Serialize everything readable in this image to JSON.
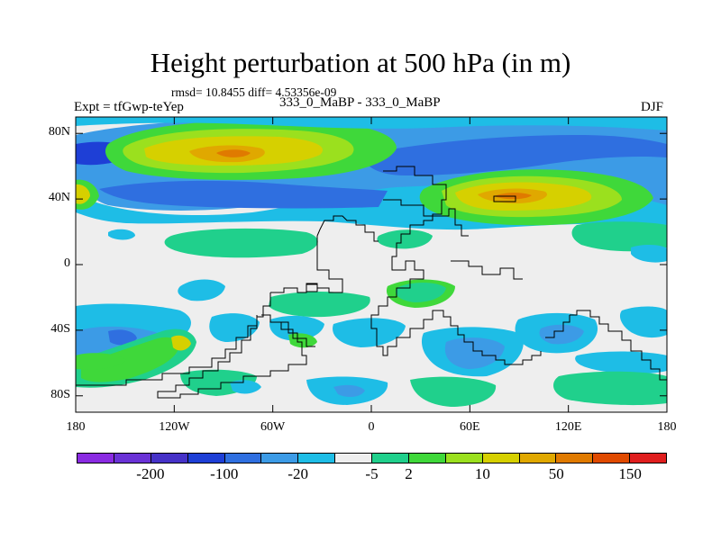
{
  "title": "Height perturbation at 500 hPa (in m)",
  "stats": "rmsd= 10.8455 diff= 4.53356e-09",
  "expt": "Expt = tfGwp-teYep",
  "case_id": "333_0_MaBP - 333_0_MaBP",
  "season": "DJF",
  "y_axis": {
    "labels": [
      "80N",
      "40N",
      "0",
      "40S",
      "80S"
    ],
    "values": [
      80,
      40,
      0,
      -40,
      -80
    ],
    "range": [
      -90,
      90
    ]
  },
  "x_axis": {
    "labels": [
      "180",
      "120W",
      "60W",
      "0",
      "60E",
      "120E",
      "180"
    ],
    "values": [
      -180,
      -120,
      -60,
      0,
      60,
      120,
      180
    ],
    "range": [
      -180,
      180
    ]
  },
  "colorbar": {
    "colors": [
      "#8a2be2",
      "#6a32d6",
      "#4632c8",
      "#1e3fd6",
      "#2f6fe0",
      "#3c9be6",
      "#1ebde6",
      "#eeeeee",
      "#20d08c",
      "#3fd83a",
      "#9be01e",
      "#d6d000",
      "#e0a800",
      "#e07a00",
      "#e04a00",
      "#e01e1e"
    ],
    "labels": [
      "-200",
      "-100",
      "-20",
      "-5",
      "2",
      "10",
      "50",
      "150"
    ],
    "label_after_box": [
      1,
      3,
      5,
      7,
      8,
      10,
      12,
      14
    ]
  },
  "colors": {
    "land_fill": "#eeeeee",
    "coastline": "#000000"
  }
}
